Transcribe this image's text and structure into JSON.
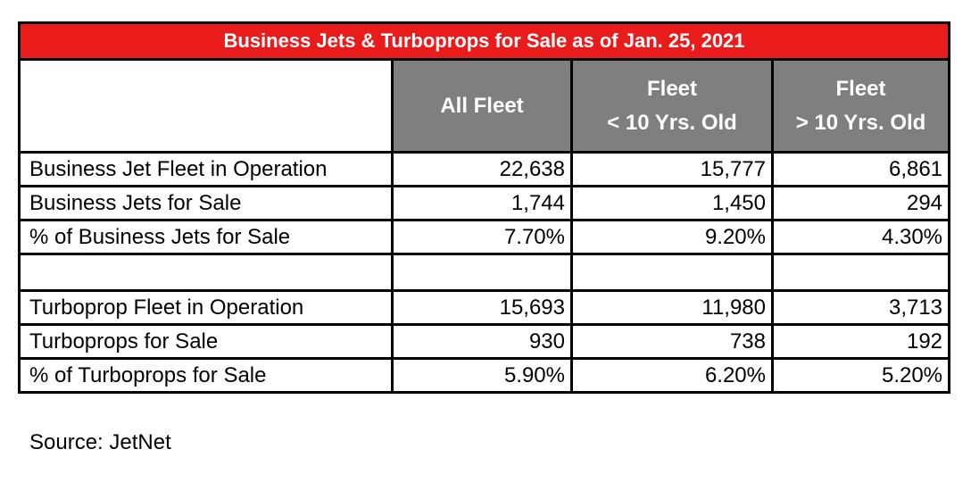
{
  "title": "Business Jets & Turboprops for Sale as of Jan. 25, 2021",
  "header": {
    "all_fleet": "All Fleet",
    "under10_line1": "Fleet",
    "under10_line2": "< 10 Yrs. Old",
    "over10_line1": "Fleet",
    "over10_line2": "> 10 Yrs. Old"
  },
  "jet_rows": [
    {
      "label": "Business Jet Fleet in Operation",
      "all": "22,638",
      "under10": "15,777",
      "over10": "6,861"
    },
    {
      "label": "Business Jets for Sale",
      "all": "1,744",
      "under10": "1,450",
      "over10": "294"
    },
    {
      "label": "% of Business Jets for Sale",
      "all": "7.70%",
      "under10": "9.20%",
      "over10": "4.30%"
    }
  ],
  "turboprop_rows": [
    {
      "label": "Turboprop Fleet in Operation",
      "all": "15,693",
      "under10": "11,980",
      "over10": "3,713"
    },
    {
      "label": "Turboprops for Sale",
      "all": "930",
      "under10": "738",
      "over10": "192"
    },
    {
      "label": "% of Turboprops for Sale",
      "all": "5.90%",
      "under10": "6.20%",
      "over10": "5.20%"
    }
  ],
  "source": "Source: JetNet",
  "colors": {
    "title_bg": "#ea1b1b",
    "header_bg": "#7f7f7f"
  }
}
